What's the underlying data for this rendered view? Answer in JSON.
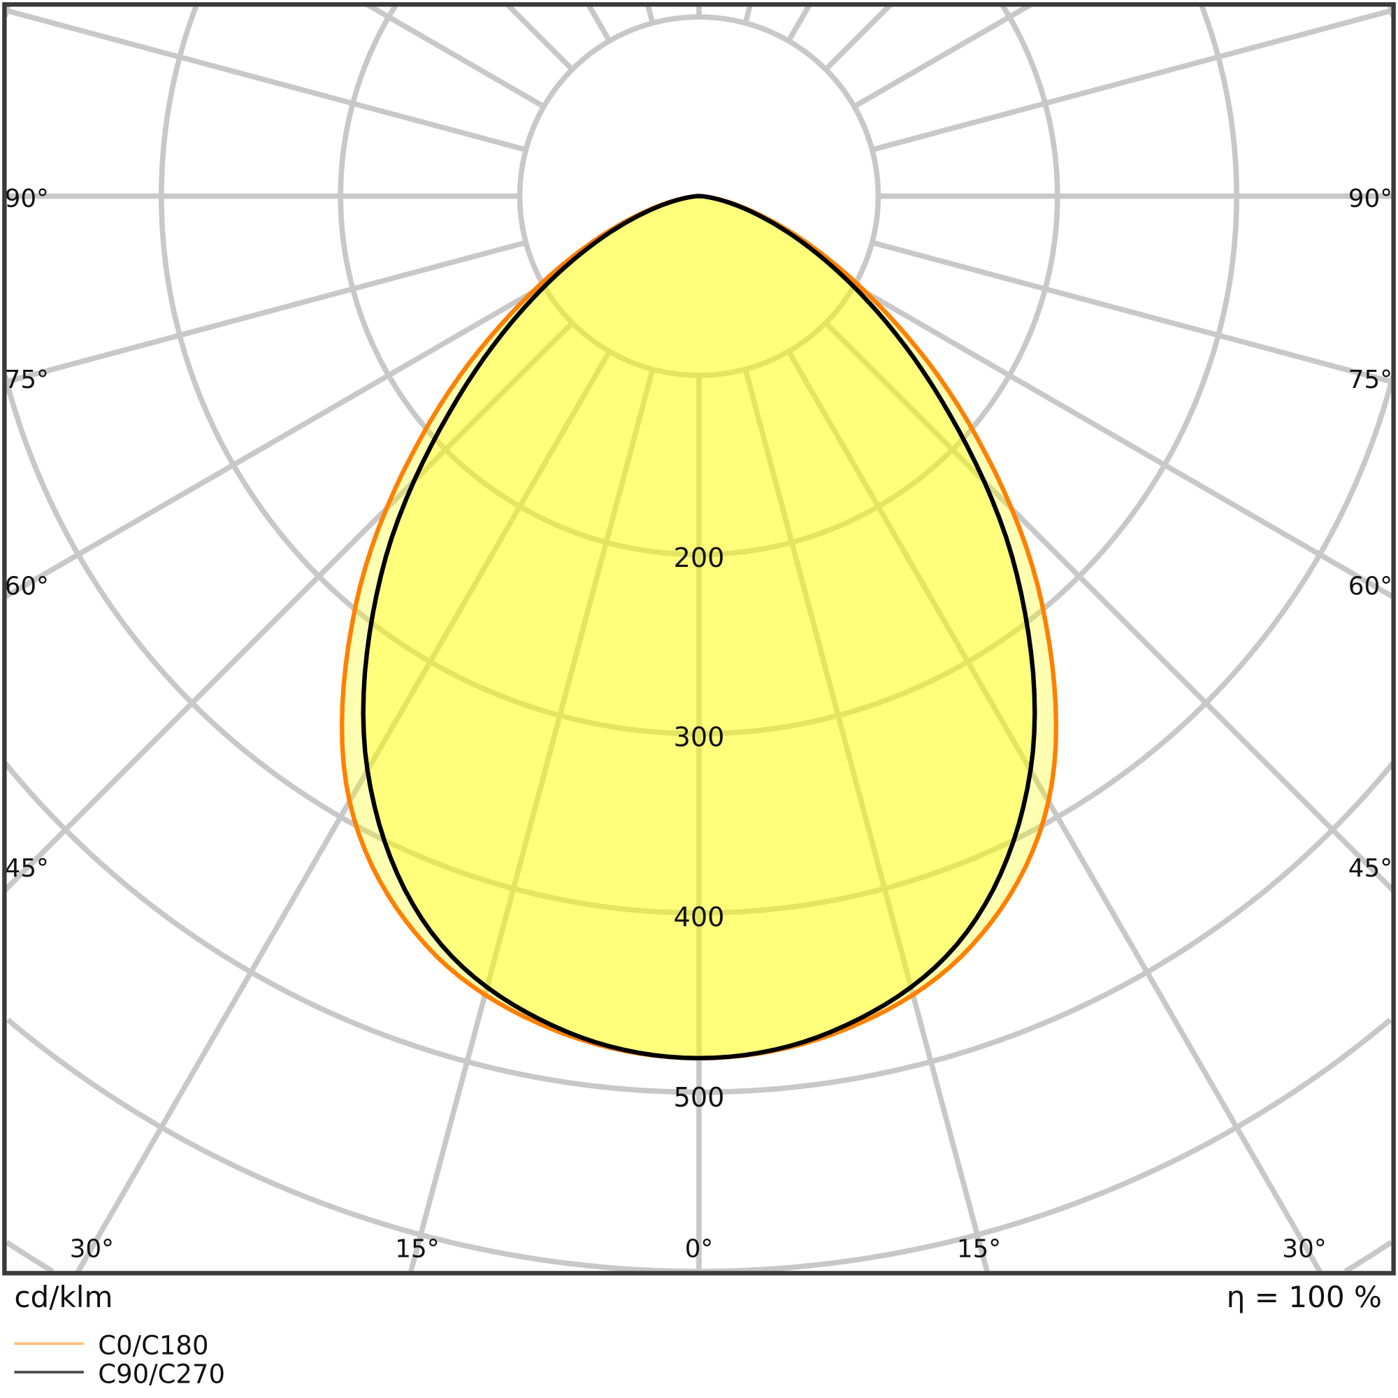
{
  "chart_data": {
    "type": "polar",
    "unit_label": "cd/klm",
    "efficiency_label": "η = 100 %",
    "radial_ticks": [
      100,
      200,
      300,
      400,
      500,
      600,
      700,
      800
    ],
    "radial_tick_labels": [
      "200",
      "300",
      "400",
      "500"
    ],
    "angle_labels_side": [
      "90°",
      "75°",
      "60°",
      "45°"
    ],
    "angle_labels_bottom": [
      "30°",
      "15°",
      "0°",
      "15°",
      "30°"
    ],
    "angle_step_deg": 15,
    "angles_deg": [
      0,
      10,
      20,
      30,
      40,
      50,
      60,
      70,
      80,
      90
    ],
    "series": [
      {
        "name": "C0/C180",
        "color": "#ff8000",
        "values": [
          481,
          472,
          445,
          390,
          298,
          196,
          108,
          48,
          13,
          0
        ]
      },
      {
        "name": "C90/C270",
        "color": "#000000",
        "values": [
          481,
          470,
          437,
          370,
          276,
          176,
          98,
          44,
          12,
          0
        ]
      }
    ],
    "fill_color": "#ffff00",
    "grid_color": "#c8c8c8",
    "legend_position": "bottom-left",
    "grid": true
  }
}
